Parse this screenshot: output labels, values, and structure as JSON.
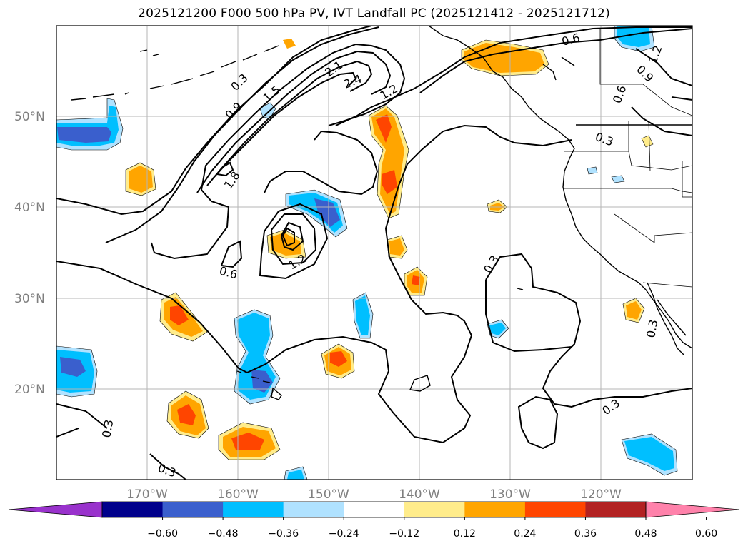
{
  "title": "2025121200 F000 500 hPa PV, IVT Landfall PC (2025121412 - 2025121712)",
  "lat_labels": [
    "50°N",
    "40°N",
    "30°N",
    "20°N"
  ],
  "lon_labels": [
    "170°W",
    "160°W",
    "150°W",
    "140°W",
    "130°W",
    "120°W"
  ],
  "contour_labels": [
    "0.3",
    "0.9",
    "1.5",
    "2.1",
    "2.4",
    "1.2",
    "1.8",
    "0.6",
    "1.2",
    "0.3",
    "0.6",
    "0.9",
    "0.6",
    "1.2",
    "0.3",
    "0.3",
    "0.3",
    "0.3",
    "0.3"
  ],
  "colorbar": {
    "ticks": [
      "−0.60",
      "−0.48",
      "−0.36",
      "−0.24",
      "−0.12",
      "0.12",
      "0.24",
      "0.36",
      "0.48",
      "0.60"
    ],
    "colors": [
      "#9932cc",
      "#00008b",
      "#3a5fcd",
      "#00bfff",
      "#b0e2ff",
      "#ffffff",
      "#ffec8b",
      "#ffa500",
      "#ff4500",
      "#b22222",
      "#ff82ab"
    ]
  },
  "fill_colors": {
    "neg1": "#b0e2ff",
    "neg2": "#00bfff",
    "neg3": "#3a5fcd",
    "pos1": "#ffec8b",
    "pos2": "#ffa500",
    "pos3": "#ff4500"
  }
}
